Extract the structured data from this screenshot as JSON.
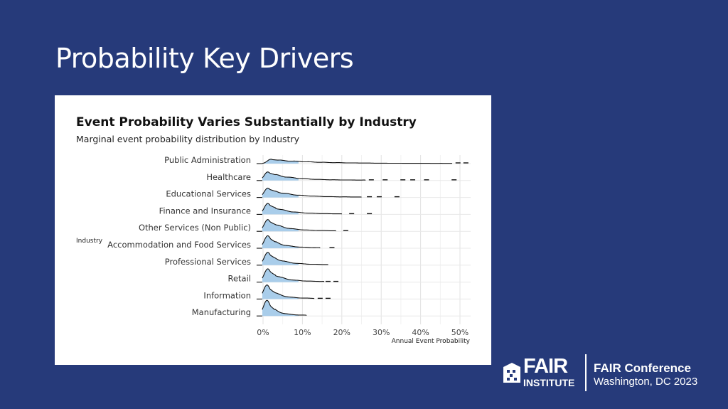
{
  "slide": {
    "title": "Probability Key Drivers"
  },
  "branding": {
    "logo_word": "FAIR",
    "logo_sub": "INSTITUTE",
    "conference_title": "FAIR Conference",
    "conference_location": "Washington, DC 2023"
  },
  "colors": {
    "background": "#263a7a",
    "ridge_fill": "#a9cdea",
    "ridge_line": "#111111",
    "grid": "#e4e4e4"
  },
  "chart_data": {
    "type": "ridgeline",
    "title": "Event Probability Varies Substantially by Industry",
    "subtitle": "Marginal event probability distribution by Industry",
    "xlabel": "Annual Event Probability",
    "ylabel": "Industry",
    "xlim": [
      0,
      0.52
    ],
    "x_ticks": [
      {
        "value": 0,
        "label": "0%"
      },
      {
        "value": 0.1,
        "label": "10%"
      },
      {
        "value": 0.2,
        "label": "20%"
      },
      {
        "value": 0.3,
        "label": "30%"
      },
      {
        "value": 0.4,
        "label": "40%"
      },
      {
        "value": 0.5,
        "label": "50%"
      }
    ],
    "grid": true,
    "series": [
      {
        "name": "Public Administration",
        "mode": 0.02,
        "peak": 0.28,
        "end": 0.48,
        "outliers": [
          0.495,
          0.515
        ]
      },
      {
        "name": "Healthcare",
        "mode": 0.012,
        "peak": 0.55,
        "end": 0.26,
        "outliers": [
          0.275,
          0.31,
          0.355,
          0.38,
          0.415,
          0.485
        ]
      },
      {
        "name": "Educational Services",
        "mode": 0.012,
        "peak": 0.6,
        "end": 0.25,
        "outliers": [
          0.27,
          0.295,
          0.34
        ]
      },
      {
        "name": "Finance and Insurance",
        "mode": 0.012,
        "peak": 0.7,
        "end": 0.2,
        "outliers": [
          0.225,
          0.27
        ]
      },
      {
        "name": "Other Services (Non Public)",
        "mode": 0.012,
        "peak": 0.75,
        "end": 0.185,
        "outliers": [
          0.21
        ]
      },
      {
        "name": "Accommodation and Food Services",
        "mode": 0.012,
        "peak": 0.8,
        "end": 0.145,
        "outliers": [
          0.175
        ]
      },
      {
        "name": "Professional Services",
        "mode": 0.012,
        "peak": 0.82,
        "end": 0.165,
        "outliers": []
      },
      {
        "name": "Retail",
        "mode": 0.012,
        "peak": 0.85,
        "end": 0.155,
        "outliers": [
          0.165,
          0.185
        ]
      },
      {
        "name": "Information",
        "mode": 0.01,
        "peak": 0.9,
        "end": 0.13,
        "outliers": [
          0.145,
          0.165
        ]
      },
      {
        "name": "Manufacturing",
        "mode": 0.01,
        "peak": 1.0,
        "end": 0.11,
        "outliers": []
      }
    ]
  }
}
